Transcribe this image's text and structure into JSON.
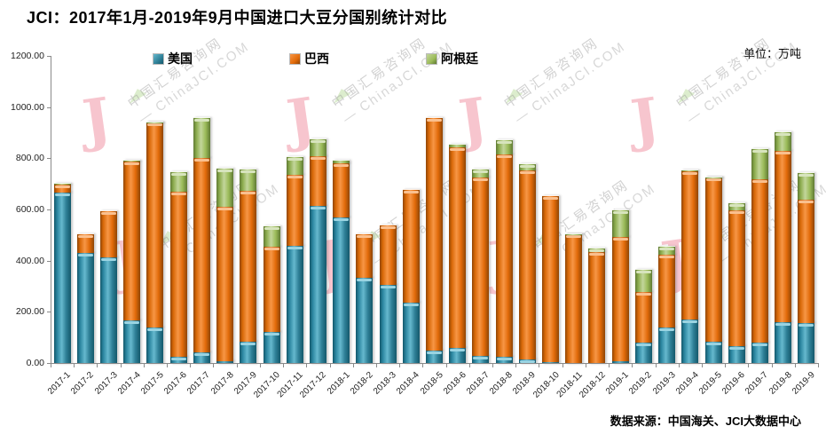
{
  "title": "JCI：2017年1月-2019年9月中国进口大豆分国别统计对比",
  "unit_label": "单位：万吨",
  "source_label": "数据来源：中国海关、JCI大数据中心",
  "watermark": {
    "line1": "中国汇易咨询网",
    "line2": "— ChinaJCI.COM",
    "logo_glyph": "J"
  },
  "colors": {
    "usa": "#2E7F96",
    "brazil": "#E26B0A",
    "argentina": "#9BBB59",
    "watermark_pink": "#F6B7C3",
    "axis": "#8A8A8A"
  },
  "chart_data": {
    "type": "bar",
    "stacked": true,
    "grid": false,
    "legend_position": "top",
    "title": "JCI：2017年1月-2019年9月中国进口大豆分国别统计对比",
    "ylabel": "万吨",
    "ylim": [
      0,
      1200
    ],
    "ytick_step": 200,
    "ytick_labels": [
      "0.00",
      "200.00",
      "400.00",
      "600.00",
      "800.00",
      "1000.00",
      "1200.00"
    ],
    "categories": [
      "2017-1",
      "2017-2",
      "2017-3",
      "2017-4",
      "2017-5",
      "2017-6",
      "2017-7",
      "2017-8",
      "2017-9",
      "2017-10",
      "2017-11",
      "2017-12",
      "2018-1",
      "2018-2",
      "2018-3",
      "2018-4",
      "2018-5",
      "2018-6",
      "2018-7",
      "2018-8",
      "2018-9",
      "2018-10",
      "2018-11",
      "2018-12",
      "2019-1",
      "2019-2",
      "2019-3",
      "2019-4",
      "2019-5",
      "2019-6",
      "2019-7",
      "2019-8",
      "2019-9"
    ],
    "series": [
      {
        "name": "美国",
        "color": "#2E7F96",
        "values": [
          670,
          434,
          415,
          170,
          142,
          29,
          45,
          12,
          85,
          125,
          462,
          616,
          573,
          336,
          310,
          240,
          53,
          62,
          30,
          27,
          17,
          7,
          0,
          0,
          12,
          84,
          142,
          173,
          87,
          69,
          82,
          162,
          160
        ]
      },
      {
        "name": "巴西",
        "color": "#E26B0A",
        "values": [
          30,
          72,
          182,
          620,
          800,
          643,
          760,
          602,
          591,
          332,
          278,
          197,
          211,
          170,
          230,
          440,
          907,
          783,
          698,
          793,
          740,
          648,
          505,
          438,
          483,
          197,
          286,
          580,
          642,
          530,
          640,
          670,
          480
        ]
      },
      {
        "name": "阿根廷",
        "color": "#9BBB59",
        "values": [
          5,
          0,
          0,
          5,
          3,
          78,
          157,
          150,
          84,
          81,
          67,
          63,
          11,
          0,
          0,
          0,
          0,
          12,
          33,
          55,
          23,
          0,
          3,
          14,
          105,
          88,
          29,
          2,
          1,
          30,
          118,
          73,
          105
        ]
      }
    ]
  }
}
